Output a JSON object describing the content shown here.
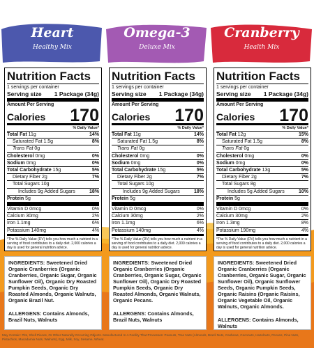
{
  "panels": [
    {
      "title": "Heart",
      "subtitle": "Healthy Mix",
      "facts": {
        "heading": "Nutrition Facts",
        "servings": "1 servings per container",
        "serving_size_label": "Serving size",
        "serving_size": "1 Package (34g)",
        "amount_per_serving": "Amount Per Serving",
        "calories_label": "Calories",
        "calories": 170,
        "dv_header": "% Daily Value*",
        "nutrients": [
          {
            "name": "Total Fat",
            "amount": "11g",
            "dv": "14%"
          },
          {
            "name": "Saturated Fat",
            "amount": "1.5g",
            "dv": "8%"
          },
          {
            "name": "Trans Fat",
            "amount": "0g"
          },
          {
            "name": "Cholesterol",
            "amount": "0mg",
            "dv": "0%"
          },
          {
            "name": "Sodium",
            "amount": "0mg",
            "dv": "0%"
          },
          {
            "name": "Total Carbohydrate",
            "amount": "15g",
            "dv": "5%"
          },
          {
            "name": "Dietary Fiber",
            "amount": "2g",
            "dv": "7%"
          },
          {
            "name": "Total Sugars",
            "amount": "10g"
          },
          {
            "name": "Includes 9g Added Sugars",
            "dv": "18%"
          },
          {
            "name": "Protein",
            "amount": "5g"
          }
        ],
        "vitamins": [
          {
            "name": "Vitamin D",
            "amount": "0mcg",
            "dv": "0%"
          },
          {
            "name": "Calcium",
            "amount": "30mg",
            "dv": "2%"
          },
          {
            "name": "Iron",
            "amount": "1.1mg",
            "dv": "6%"
          },
          {
            "name": "Potassium",
            "amount": "140mg",
            "dv": "4%"
          }
        ],
        "footnote": "*The % Daily Value (DV) tells you how much a nutrient in a serving of food contributes to a daily diet. 2,000 calories a day is used for general nutrition advice."
      },
      "ingredients_label": "INGREDIENTS:",
      "ingredients": "Sweetened Dried Organic Cranberries (Organic Cranberries, Organic Sugar, Organic Sunflower Oil), Organic Dry Roasted Pumpkin Seeds, Organic Dry Roasted Almonds, Organic Walnuts, Organic Brazil Nut.",
      "allergens_label": "ALLERGENS:",
      "allergens": "Contains Almonds, Brazil Nuts, Walnuts"
    },
    {
      "title": "Omega-3",
      "subtitle": "Deluxe Mix",
      "facts": {
        "heading": "Nutrition Facts",
        "servings": "1 servings per container",
        "serving_size_label": "Serving size",
        "serving_size": "1 Package (34g)",
        "amount_per_serving": "Amount Per Serving",
        "calories_label": "Calories",
        "calories": 170,
        "dv_header": "% Daily Value*",
        "nutrients": [
          {
            "name": "Total Fat",
            "amount": "11g",
            "dv": "14%"
          },
          {
            "name": "Saturated Fat",
            "amount": "1.5g",
            "dv": "8%"
          },
          {
            "name": "Trans Fat",
            "amount": "0g"
          },
          {
            "name": "Cholesterol",
            "amount": "0mg",
            "dv": "0%"
          },
          {
            "name": "Sodium",
            "amount": "0mg",
            "dv": "0%"
          },
          {
            "name": "Total Carbohydrate",
            "amount": "15g",
            "dv": "5%"
          },
          {
            "name": "Dietary Fiber",
            "amount": "2g",
            "dv": "7%"
          },
          {
            "name": "Total Sugars",
            "amount": "10g"
          },
          {
            "name": "Includes 9g Added Sugars",
            "dv": "18%"
          },
          {
            "name": "Protein",
            "amount": "5g"
          }
        ],
        "vitamins": [
          {
            "name": "Vitamin D",
            "amount": "0mcg",
            "dv": "0%"
          },
          {
            "name": "Calcium",
            "amount": "30mg",
            "dv": "2%"
          },
          {
            "name": "Iron",
            "amount": "1.1mg",
            "dv": "6%"
          },
          {
            "name": "Potassium",
            "amount": "140mg",
            "dv": "4%"
          }
        ],
        "footnote": "*The % Daily Value (DV) tells you how much a nutrient in a serving of food contributes to a daily diet. 2,000 calories a day is used for general nutrition advice."
      },
      "ingredients_label": "INGREDIENTS:",
      "ingredients": "Sweetened Dried Organic Cranberries (Organic Cranberries, Organic Sugar, Organic Sunflower Oil), Organic Dry Roasted Pumpkin Seeds, Organic Dry Roasted Almonds, Organic Walnuts, Organic Pecans.",
      "allergens_label": "ALLERGENS:",
      "allergens": "Contains Almonds, Brazil Nuts, Walnuts"
    },
    {
      "title": "Cranberry",
      "subtitle": "Health Mix",
      "facts": {
        "heading": "Nutrition Facts",
        "servings": "1 servings per container",
        "serving_size_label": "Serving size",
        "serving_size": "1 Package (34g)",
        "amount_per_serving": "Amount Per Serving",
        "calories_label": "Calories",
        "calories": 170,
        "dv_header": "% Daily Value*",
        "nutrients": [
          {
            "name": "Total Fat",
            "amount": "12g",
            "dv": "15%"
          },
          {
            "name": "Saturated Fat",
            "amount": "1.5g",
            "dv": "8%"
          },
          {
            "name": "Trans Fat",
            "amount": "0g"
          },
          {
            "name": "Cholesterol",
            "amount": "0mg",
            "dv": "0%"
          },
          {
            "name": "Sodium",
            "amount": "0mg",
            "dv": "0%"
          },
          {
            "name": "Total Carbohydrate",
            "amount": "13g",
            "dv": "5%"
          },
          {
            "name": "Dietary Fiber",
            "amount": "2g",
            "dv": "7%"
          },
          {
            "name": "Total Sugars",
            "amount": "8g"
          },
          {
            "name": "Includes 5g Added Sugars",
            "dv": "10%"
          },
          {
            "name": "Protein",
            "amount": "5g"
          }
        ],
        "vitamins": [
          {
            "name": "Vitamin D",
            "amount": "0mcg",
            "dv": "0%"
          },
          {
            "name": "Calcium",
            "amount": "30mg",
            "dv": "2%"
          },
          {
            "name": "Iron",
            "amount": "1.3mg",
            "dv": "8%"
          },
          {
            "name": "Potassium",
            "amount": "190mg",
            "dv": "4%"
          }
        ],
        "footnote": "*The % Daily Value (DV) tells you how much a nutrient in a serving of food contributes to a daily diet. 2,000 calories a day is used for general nutrition advice."
      },
      "ingredients_label": "INGREDIENTS:",
      "ingredients": "Sweetened Dried Organic Cranberries (Organic Cranberries, Organic Sugar, Organic Sunflower Oil), Organic Sunflower Seeds, Organic Pumpkin Seeds, Organic Raisins (Organic Raisins, Organic Vegetable Oil, Organic Walnuts, Organic Almonds.",
      "allergens_label": "ALLERGENS:",
      "allergens": "Contains Almonds, Walnuts"
    }
  ],
  "footer": "May Contain: Pits, Shell Pieces, Or Other Naturally Occurring Objects. Manufactured In A Facility That Processes: Peanuts, Tree Nuts (Almonds, Brazil Nuts, Cashews, Coconuts, Hazelnuts, Pecans, Pine Nuts, Pistachios, Macadamia Nuts, Walnuts), Egg, Milk, Soy, Sesame, Wheat."
}
